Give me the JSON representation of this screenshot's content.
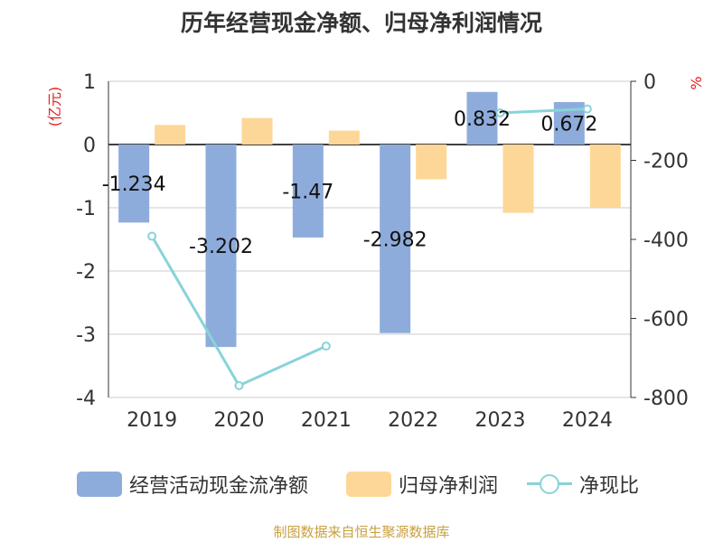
{
  "title": "历年经营现金净额、归母净利润情况",
  "source_note": "制图数据来自恒生聚源数据库",
  "colors": {
    "cash": "#8eacdb",
    "profit": "#fdd797",
    "ratio": "#88d3d8",
    "unit_label": "#e02020",
    "title": "#333333",
    "source": "#c8a040"
  },
  "chart_data": {
    "type": "bar",
    "title": "历年经营现金净额、归母净利润情况",
    "categories": [
      "2019",
      "2020",
      "2021",
      "2022",
      "2023",
      "2024"
    ],
    "left_axis": {
      "label": "(亿元)",
      "min": -4,
      "max": 1,
      "ticks": [
        "1",
        "0",
        "-1",
        "-2",
        "-3",
        "-4"
      ]
    },
    "right_axis": {
      "label": "%",
      "min": -800,
      "max": 0,
      "ticks": [
        "0",
        "-200",
        "-400",
        "-600",
        "-800"
      ]
    },
    "grid": true,
    "legend_position": "bottom",
    "series": [
      {
        "name": "经营活动现金流净额",
        "type": "bar",
        "axis": "left",
        "values": [
          -1.234,
          -3.202,
          -1.47,
          -2.982,
          0.832,
          0.672
        ],
        "labels": [
          "-1.234",
          "-3.202",
          "-1.47",
          "-2.982",
          "0.832",
          "0.672"
        ]
      },
      {
        "name": "归母净利润",
        "type": "bar",
        "axis": "left",
        "values": [
          0.31,
          0.42,
          0.22,
          -0.55,
          -1.08,
          -1.0
        ]
      },
      {
        "name": "净现比",
        "type": "line",
        "axis": "right",
        "values": [
          -392,
          -770,
          -670,
          null,
          -80,
          -70
        ]
      }
    ]
  }
}
